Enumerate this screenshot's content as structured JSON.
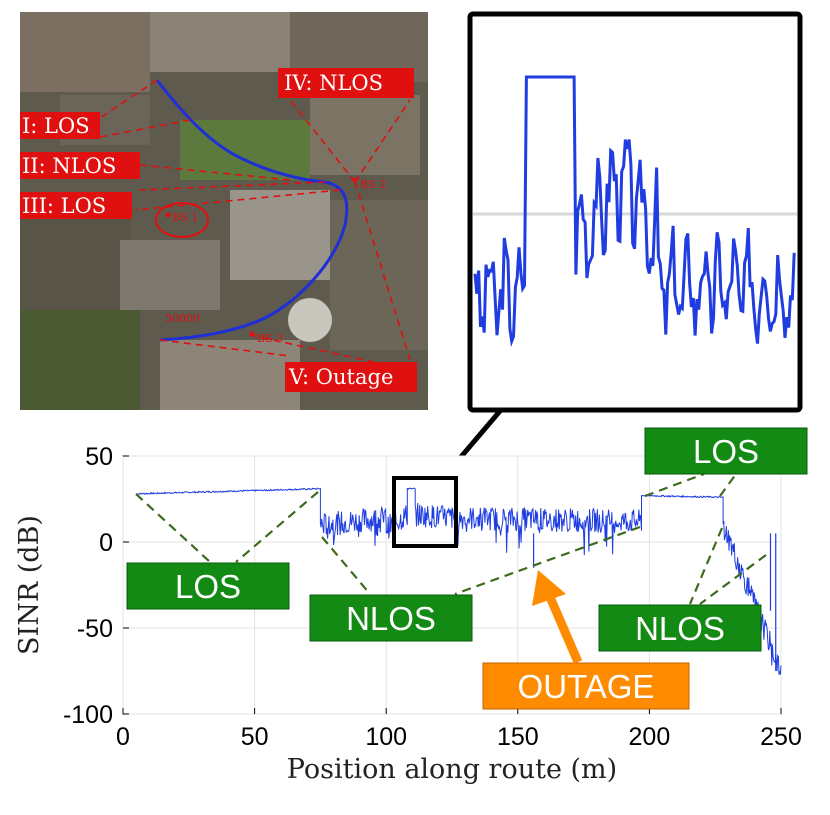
{
  "map": {
    "labels": [
      "I: LOS",
      "II: NLOS",
      "III: LOS",
      "IV: NLOS",
      "V: Outage"
    ],
    "bs_labels": [
      "BS 1",
      "BS 2",
      "BS 3"
    ],
    "marker": "50000"
  },
  "annotations": {
    "los_left": "LOS",
    "nlos_mid": "NLOS",
    "outage": "OUTAGE",
    "los_right": "LOS",
    "nlos_right": "NLOS"
  },
  "colors": {
    "series": "#1f3de0",
    "route": "#1f2fd6",
    "los_nlos_box": "#138a13",
    "outage_box": "#ff8c00",
    "map_label": "#e01010",
    "dashed": "#3d6b1c"
  },
  "chart_data": {
    "type": "line",
    "xlabel": "Position along route (m)",
    "ylabel": "SINR (dB)",
    "xlim": [
      0,
      250
    ],
    "ylim": [
      -100,
      50
    ],
    "xticks": [
      0,
      50,
      100,
      150,
      200,
      250
    ],
    "yticks": [
      50,
      0,
      -50,
      -100
    ],
    "grid": true,
    "series": [
      {
        "segments": [
          {
            "x": [
              5,
              75
            ],
            "y": [
              28,
              31
            ]
          },
          {
            "x": [
              75,
              100
            ],
            "y": [
              10,
              14
            ]
          },
          {
            "x": [
              100,
              108
            ],
            "y": [
              8,
              16
            ]
          },
          {
            "x": [
              108,
              111
            ],
            "y": [
              31,
              31
            ]
          },
          {
            "x": [
              111,
              125
            ],
            "y": [
              16,
              14
            ]
          },
          {
            "x": [
              125,
              197
            ],
            "y": [
              14,
              12
            ]
          },
          {
            "x": [
              197,
              228
            ],
            "y": [
              27,
              26
            ]
          },
          {
            "x": [
              228,
              250
            ],
            "y": [
              10,
              -75
            ]
          }
        ],
        "dips": [
          {
            "x": 156,
            "y": -15
          },
          {
            "x": 248,
            "y": -75
          },
          {
            "x": 246,
            "y": -40
          }
        ]
      }
    ],
    "inset": {
      "xlim": [
        104,
        125
      ],
      "baseline_y": 14,
      "peak_y": 31
    }
  }
}
